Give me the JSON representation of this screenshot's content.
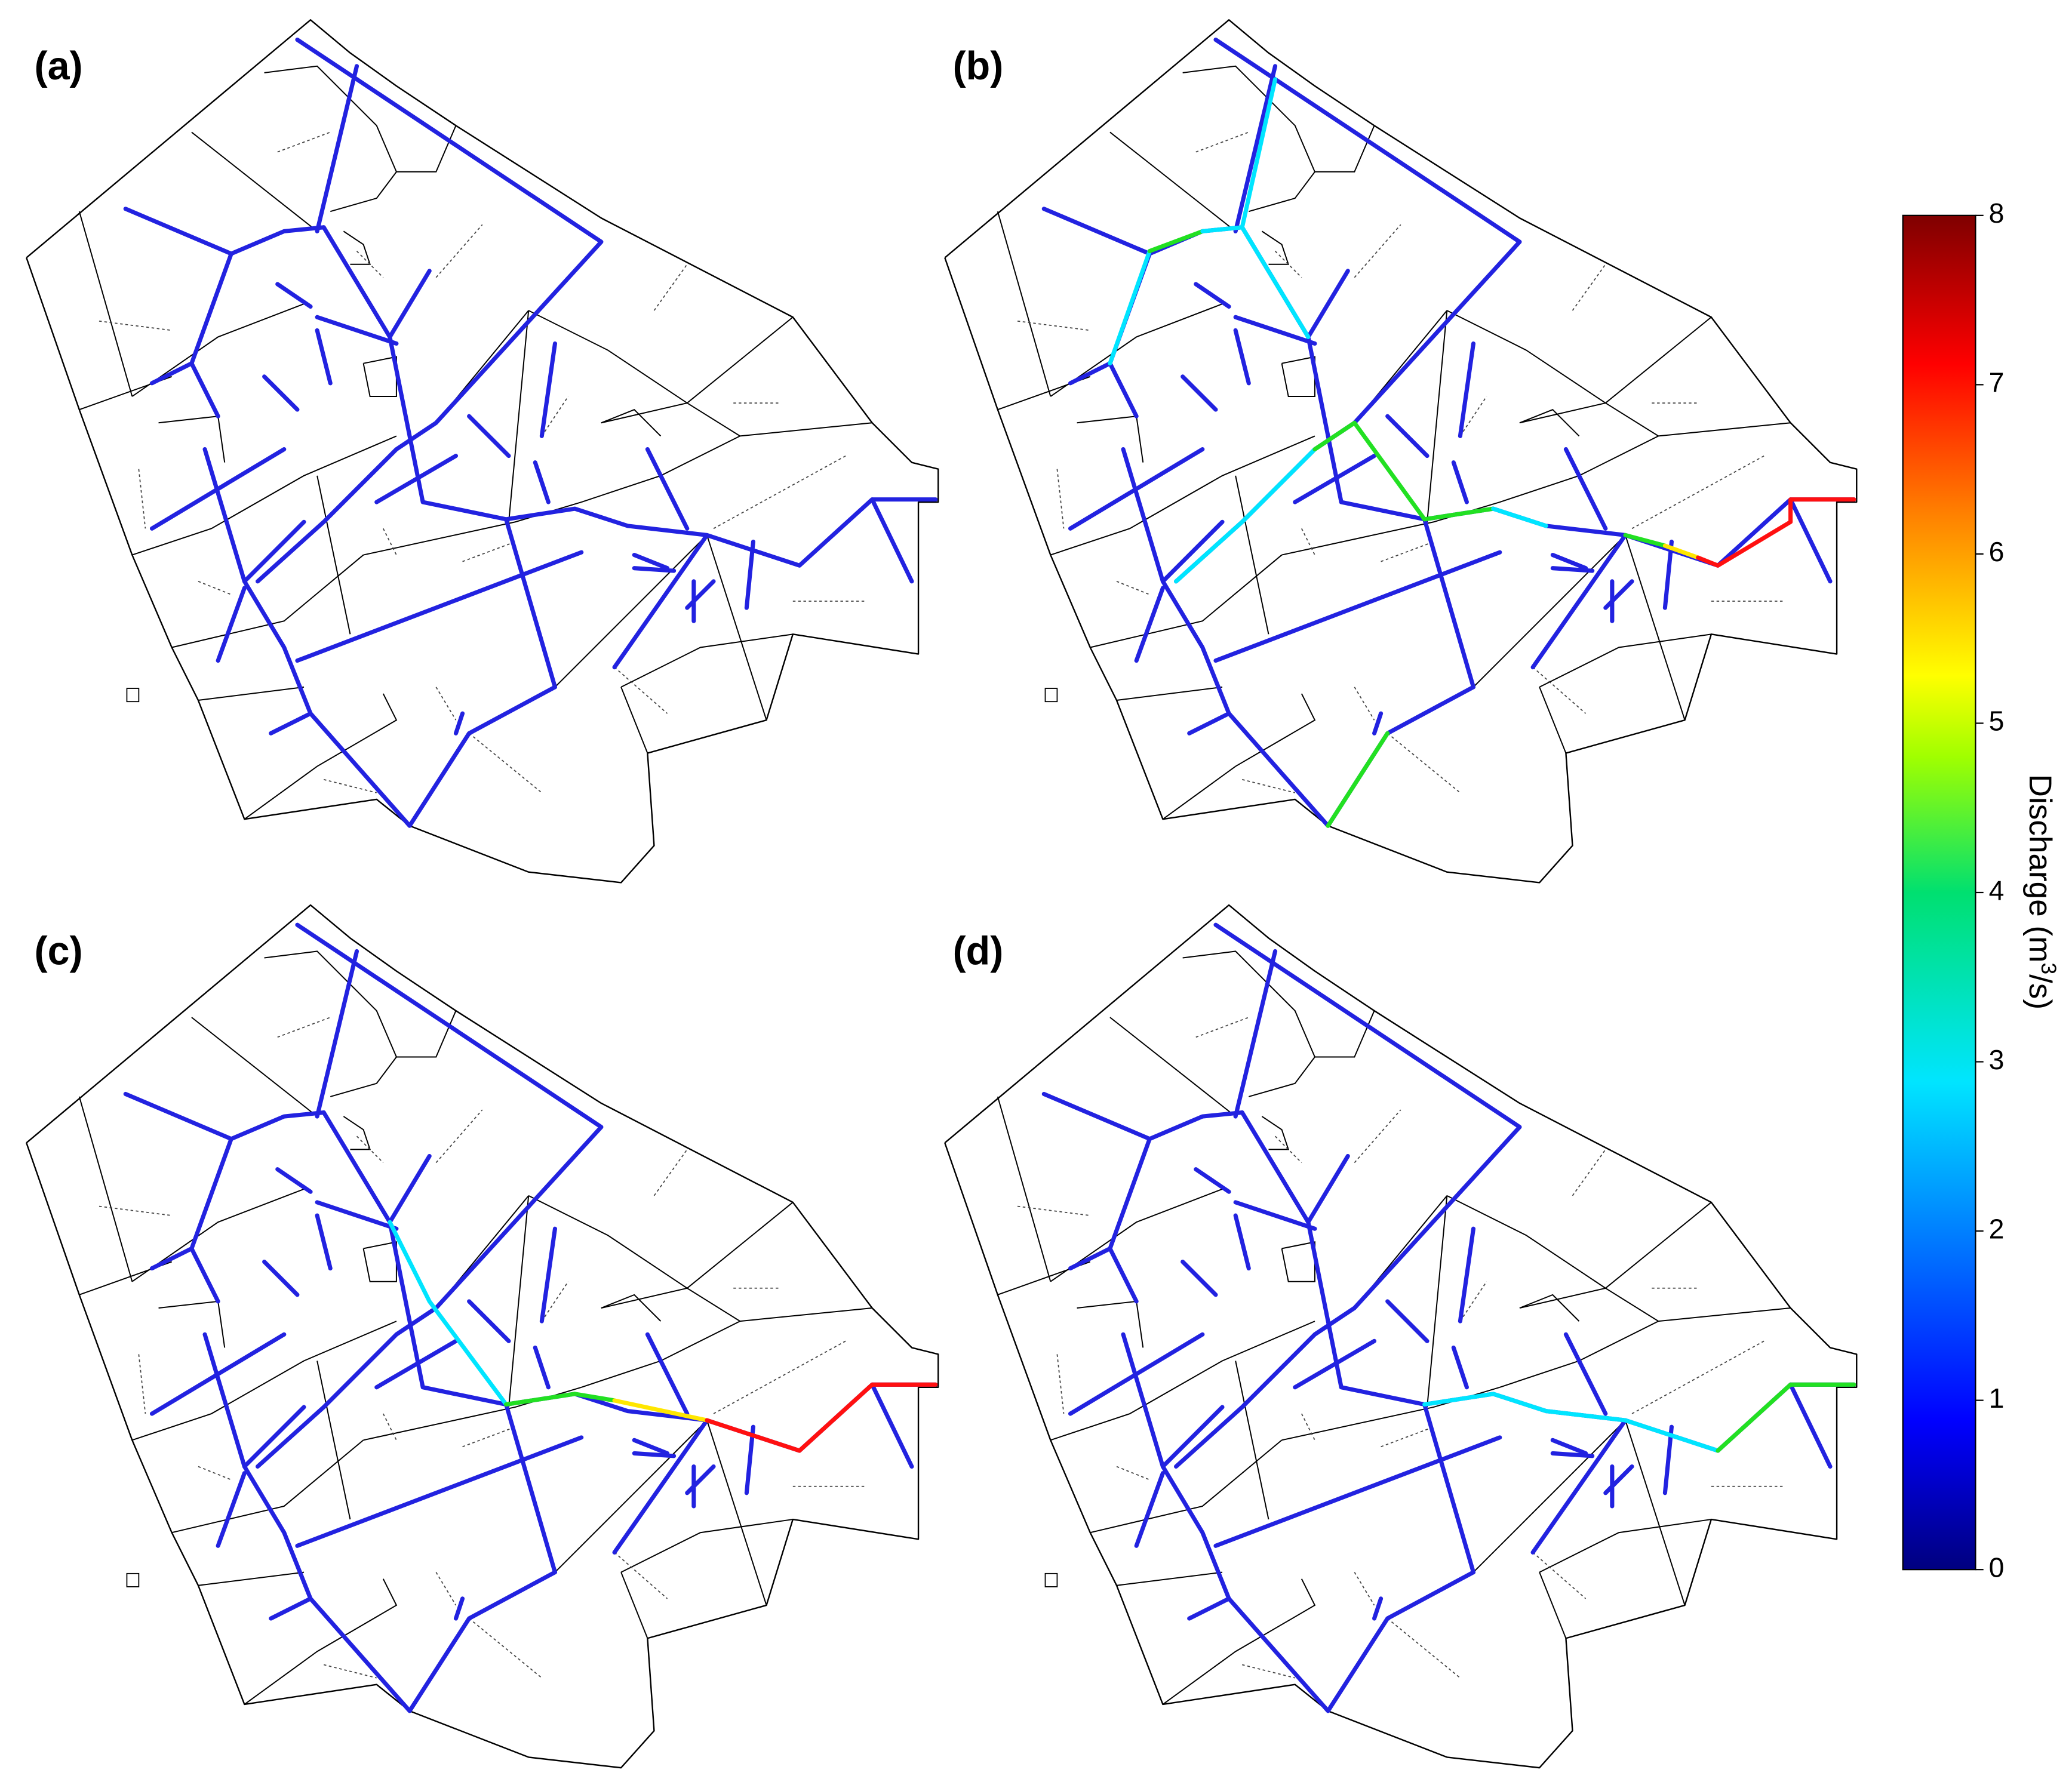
{
  "panels": [
    "(a)",
    "(b)",
    "(c)",
    "(d)"
  ],
  "colorbar": {
    "label": [
      "Discharge (m",
      "3",
      "/s)"
    ],
    "lim": [
      0,
      8
    ],
    "ticks": [
      0,
      1,
      2,
      3,
      4,
      5,
      6,
      7,
      8
    ]
  }
}
